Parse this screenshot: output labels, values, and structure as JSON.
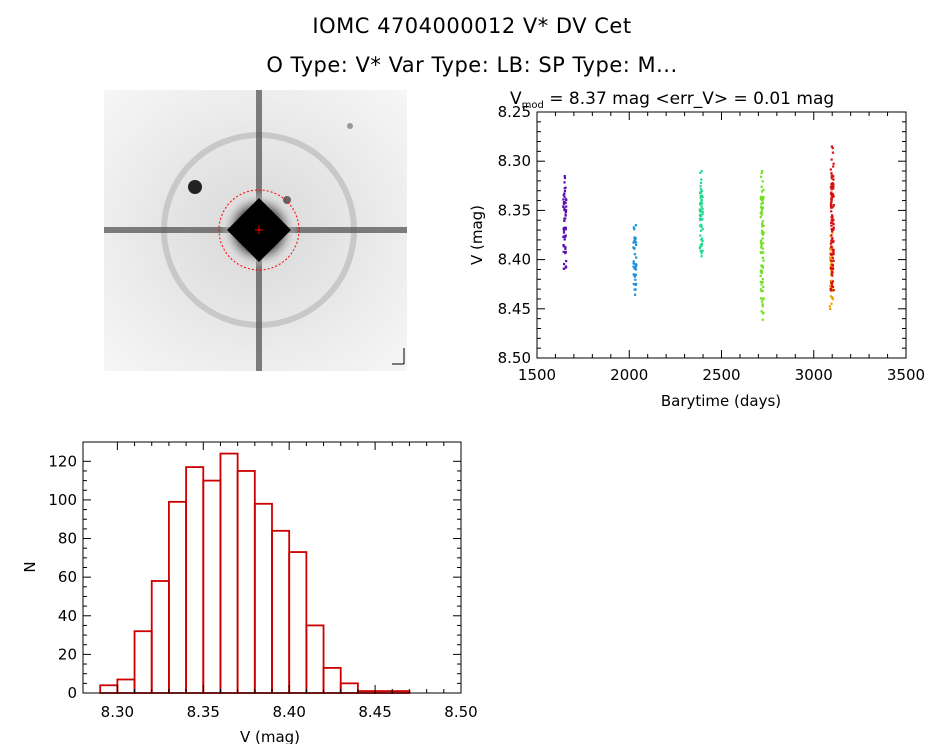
{
  "header": {
    "title_line1": "IOMC 4704000012    V* DV Cet",
    "title_line2": "O Type: V*  Var Type: LB:  SP Type: M..."
  },
  "colors": {
    "axis": "#000000",
    "histogram": "#cc0000",
    "marker": "#ff0000"
  },
  "chart_data": [
    {
      "type": "scatter",
      "title_parts": {
        "v": "V",
        "sub": "mod",
        "rest": " = 8.37 mag <err_V> = 0.01 mag"
      },
      "xlabel": "Barytime (days)",
      "ylabel": "V (mag)",
      "xlim": [
        1500,
        3500
      ],
      "ylim": [
        8.5,
        8.25
      ],
      "xticks": [
        1500,
        2000,
        2500,
        3000,
        3500
      ],
      "yticks": [
        8.25,
        8.3,
        8.35,
        8.4,
        8.45,
        8.5
      ],
      "series": [
        {
          "color": "#5a10b0",
          "x": 1650,
          "ymin": 8.315,
          "ymax": 8.43,
          "n": 60
        },
        {
          "color": "#1a8fd8",
          "x": 2030,
          "ymin": 8.365,
          "ymax": 8.45,
          "n": 40
        },
        {
          "color": "#20d890",
          "x": 2390,
          "ymin": 8.31,
          "ymax": 8.415,
          "n": 60
        },
        {
          "color": "#70e020",
          "x": 2720,
          "ymin": 8.31,
          "ymax": 8.485,
          "n": 90
        },
        {
          "color": "#f0a000",
          "x": 3095,
          "ymin": 8.37,
          "ymax": 8.465,
          "n": 40
        },
        {
          "color": "#d81010",
          "x": 3100,
          "ymin": 8.285,
          "ymax": 8.46,
          "n": 110
        }
      ]
    },
    {
      "type": "bar",
      "xlabel": "V (mag)",
      "ylabel": "N",
      "xlim": [
        8.28,
        8.5
      ],
      "ylim": [
        0,
        130
      ],
      "xticks": [
        8.3,
        8.35,
        8.4,
        8.45,
        8.5
      ],
      "yticks": [
        0,
        20,
        40,
        60,
        80,
        100,
        120
      ],
      "bin_width": 0.01,
      "bin_starts": [
        8.29,
        8.3,
        8.31,
        8.32,
        8.33,
        8.34,
        8.35,
        8.36,
        8.37,
        8.38,
        8.39,
        8.4,
        8.41,
        8.42,
        8.43,
        8.44,
        8.45,
        8.46,
        8.47
      ],
      "values": [
        4,
        7,
        32,
        58,
        99,
        117,
        110,
        124,
        115,
        98,
        84,
        73,
        35,
        13,
        5,
        1,
        1,
        1,
        0
      ]
    }
  ]
}
